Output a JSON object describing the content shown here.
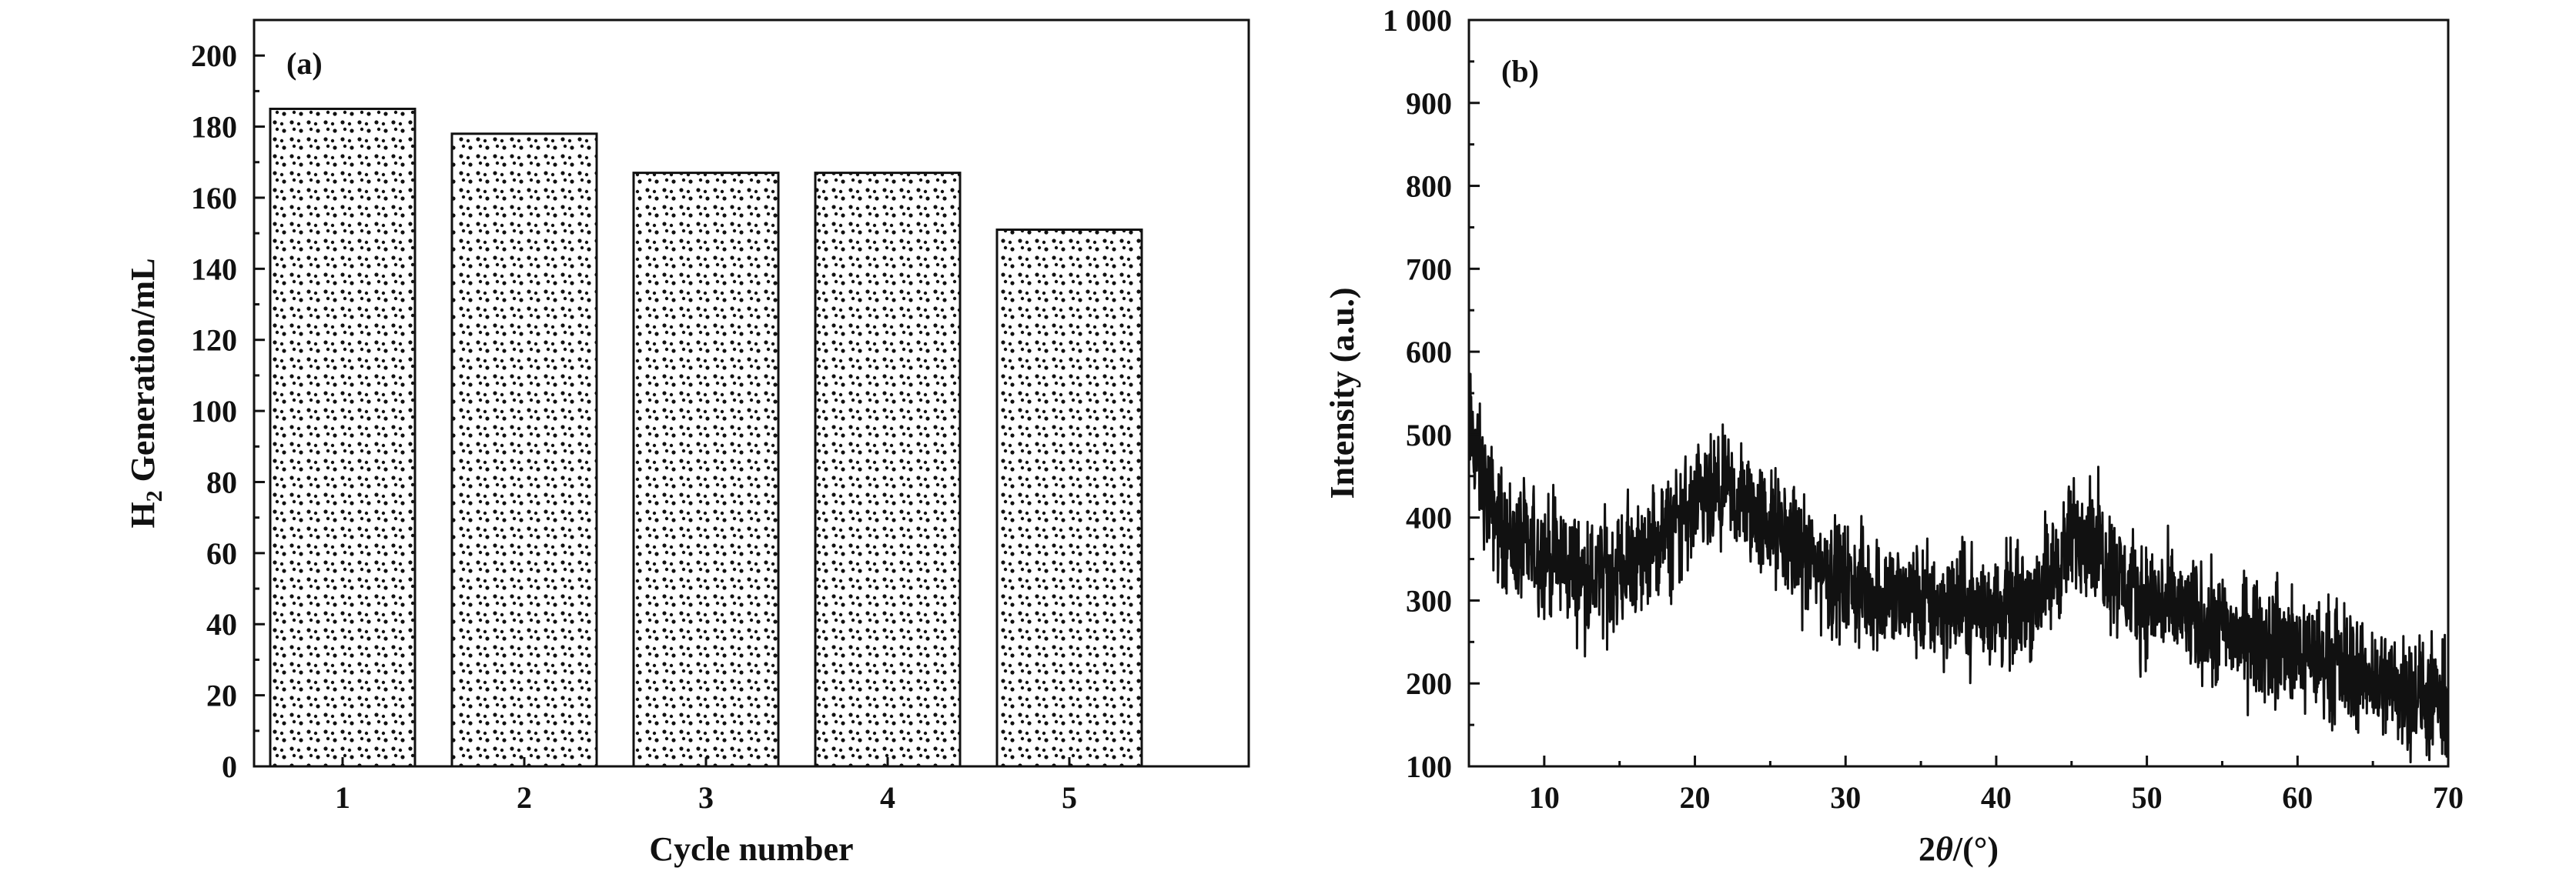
{
  "chart_data": [
    {
      "type": "bar",
      "panel_label": "(a)",
      "categories": [
        "1",
        "2",
        "3",
        "4",
        "5"
      ],
      "values": [
        185,
        178,
        167,
        167,
        151
      ],
      "xlabel": "Cycle number",
      "ylabel_main": "H",
      "ylabel_sub": "2",
      "ylabel_rest": " Generation/mL",
      "ylim": [
        0,
        210
      ],
      "yticks": [
        "0",
        "20",
        "40",
        "60",
        "80",
        "100",
        "120",
        "140",
        "160",
        "180",
        "200"
      ],
      "bar_fill": "hatched (dotted pattern)",
      "grid": false,
      "legend": "none"
    },
    {
      "type": "line",
      "panel_label": "(b)",
      "xlabel_pre": "2",
      "xlabel_theta": "θ",
      "xlabel_post": "/(°)",
      "ylabel": "Intensity (a.u.)",
      "xlim": [
        5,
        70
      ],
      "ylim": [
        100,
        1000
      ],
      "xticks": [
        "10",
        "20",
        "30",
        "40",
        "50",
        "60",
        "70"
      ],
      "yticks": [
        "100",
        "200",
        "300",
        "400",
        "500",
        "600",
        "700",
        "800",
        "900",
        "1 000"
      ],
      "x": [
        5,
        6,
        7,
        8,
        9,
        10,
        11,
        12,
        13,
        14,
        15,
        16,
        17,
        18,
        19,
        20,
        21,
        22,
        23,
        24,
        25,
        26,
        27,
        28,
        29,
        30,
        31,
        32,
        33,
        34,
        35,
        36,
        37,
        38,
        39,
        40,
        41,
        42,
        43,
        44,
        45,
        46,
        47,
        48,
        49,
        50,
        51,
        52,
        53,
        54,
        55,
        56,
        57,
        58,
        59,
        60,
        61,
        62,
        63,
        64,
        65,
        66,
        67,
        68,
        69,
        70
      ],
      "y": [
        510,
        440,
        390,
        370,
        360,
        355,
        350,
        335,
        325,
        330,
        340,
        350,
        360,
        375,
        395,
        410,
        420,
        425,
        420,
        405,
        390,
        375,
        360,
        345,
        330,
        320,
        315,
        310,
        305,
        300,
        298,
        296,
        295,
        292,
        290,
        288,
        292,
        300,
        315,
        340,
        370,
        390,
        360,
        330,
        310,
        300,
        295,
        285,
        280,
        270,
        265,
        260,
        255,
        250,
        245,
        240,
        235,
        228,
        222,
        215,
        208,
        200,
        192,
        185,
        178,
        170
      ],
      "noise_amplitude": 35,
      "line_color": "#111111",
      "grid": false,
      "legend": "none"
    }
  ]
}
